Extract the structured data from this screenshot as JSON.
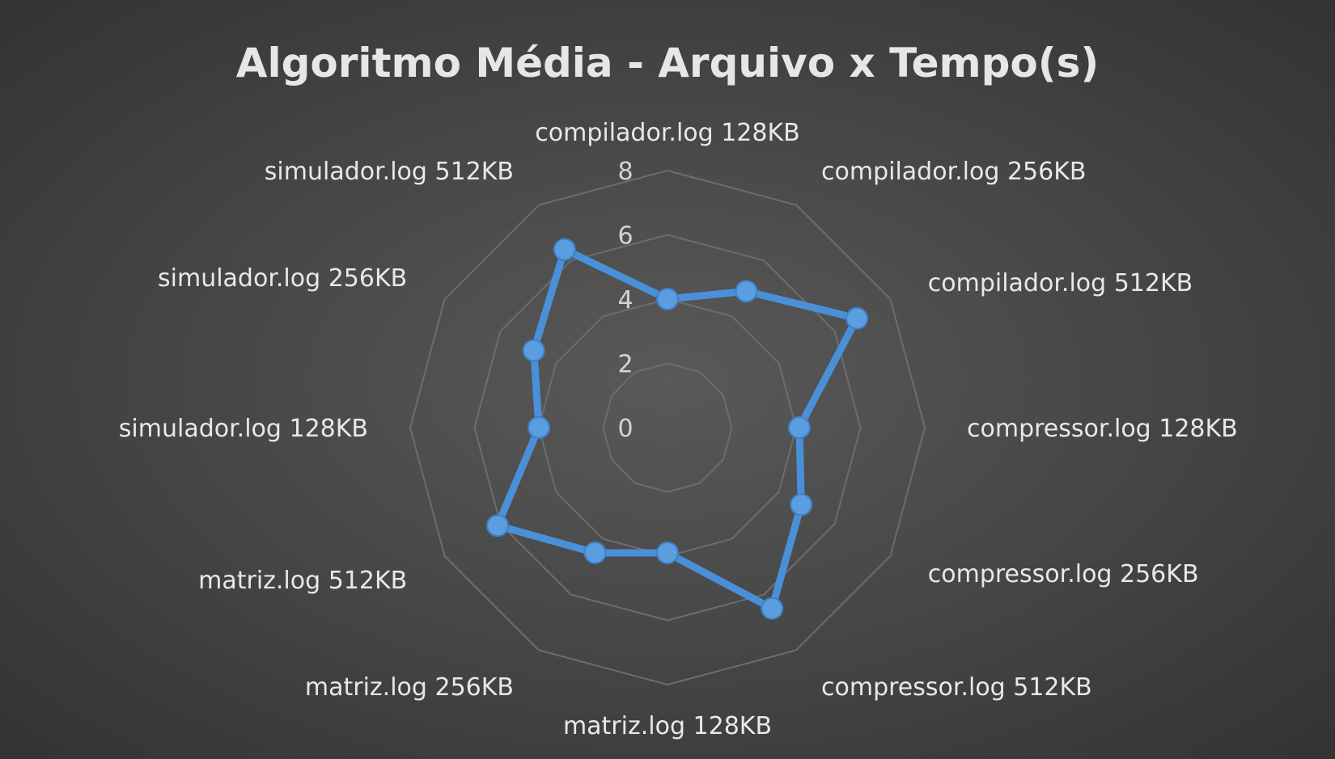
{
  "colors": {
    "series": "#4a90d9",
    "point": "#5b9ee0",
    "grid": "#6d6d6d",
    "text": "#e8e8e8"
  },
  "chart_data": {
    "type": "radar",
    "title": "Algoritmo Média - Arquivo x Tempo(s)",
    "categories": [
      "compilador.log 128KB",
      "compilador.log 256KB",
      "compilador.log 512KB",
      "compressor.log 128KB",
      "compressor.log 256KB",
      "compressor.log 512KB",
      "matriz.log 128KB",
      "matriz.log 256KB",
      "matriz.log 512KB",
      "simulador.log 128KB",
      "simulador.log 256KB",
      "simulador.log 512KB"
    ],
    "ticks": [
      0,
      2,
      4,
      6,
      8
    ],
    "rlim": [
      0,
      8
    ],
    "grid": true,
    "legend": "none",
    "series": [
      {
        "values": [
          4.0,
          4.9,
          6.8,
          4.1,
          4.8,
          6.5,
          3.9,
          4.5,
          6.1,
          4.0,
          4.8,
          6.4
        ]
      }
    ]
  }
}
